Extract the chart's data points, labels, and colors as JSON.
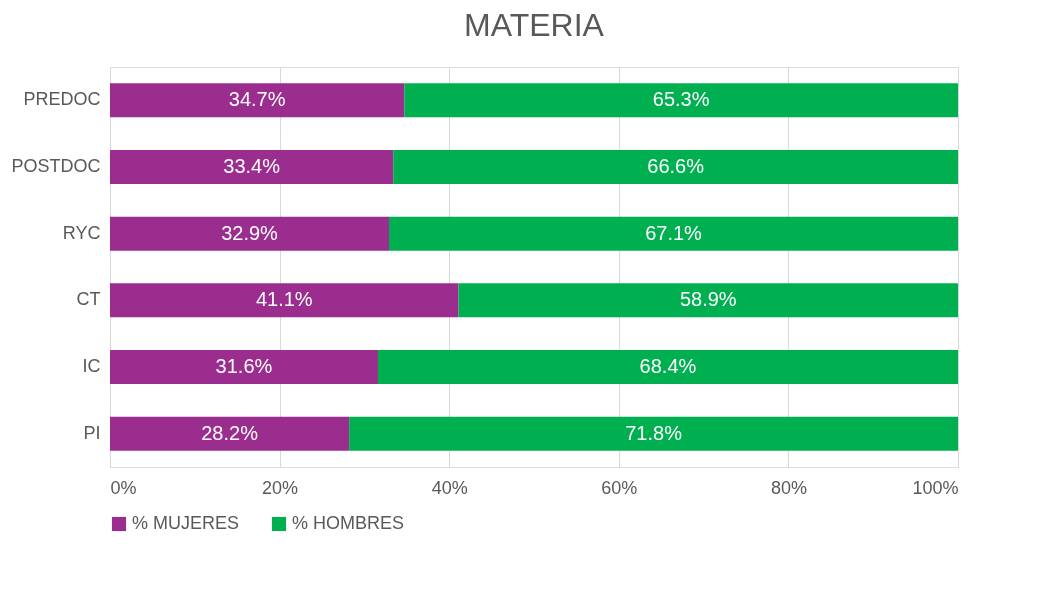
{
  "chart_data": {
    "type": "bar",
    "title": "MATERIA",
    "orientation": "horizontal",
    "stacked": true,
    "categories": [
      "PREDOC",
      "POSTDOC",
      "RYC",
      "CT",
      "IC",
      "PI"
    ],
    "series": [
      {
        "name": "% MUJERES",
        "color": "#9b2d8f",
        "values": [
          34.7,
          33.4,
          32.9,
          41.1,
          31.6,
          28.2
        ],
        "value_labels": [
          "34.7%",
          "33.4%",
          "32.9%",
          "41.1%",
          "31.6%",
          "28.2%"
        ]
      },
      {
        "name": "% HOMBRES",
        "color": "#00b050",
        "values": [
          65.3,
          66.6,
          67.1,
          58.9,
          68.4,
          71.8
        ],
        "value_labels": [
          "65.3%",
          "66.6%",
          "67.1%",
          "58.9%",
          "68.4%",
          "71.8%"
        ]
      }
    ],
    "xlim": [
      0,
      100
    ],
    "xticks": [
      {
        "value": 0,
        "label": "0%"
      },
      {
        "value": 20,
        "label": "20%"
      },
      {
        "value": 40,
        "label": "40%"
      },
      {
        "value": 60,
        "label": "60%"
      },
      {
        "value": 80,
        "label": "80%"
      },
      {
        "value": 100,
        "label": "100%"
      }
    ],
    "grid": "x",
    "legend": "bottom"
  }
}
